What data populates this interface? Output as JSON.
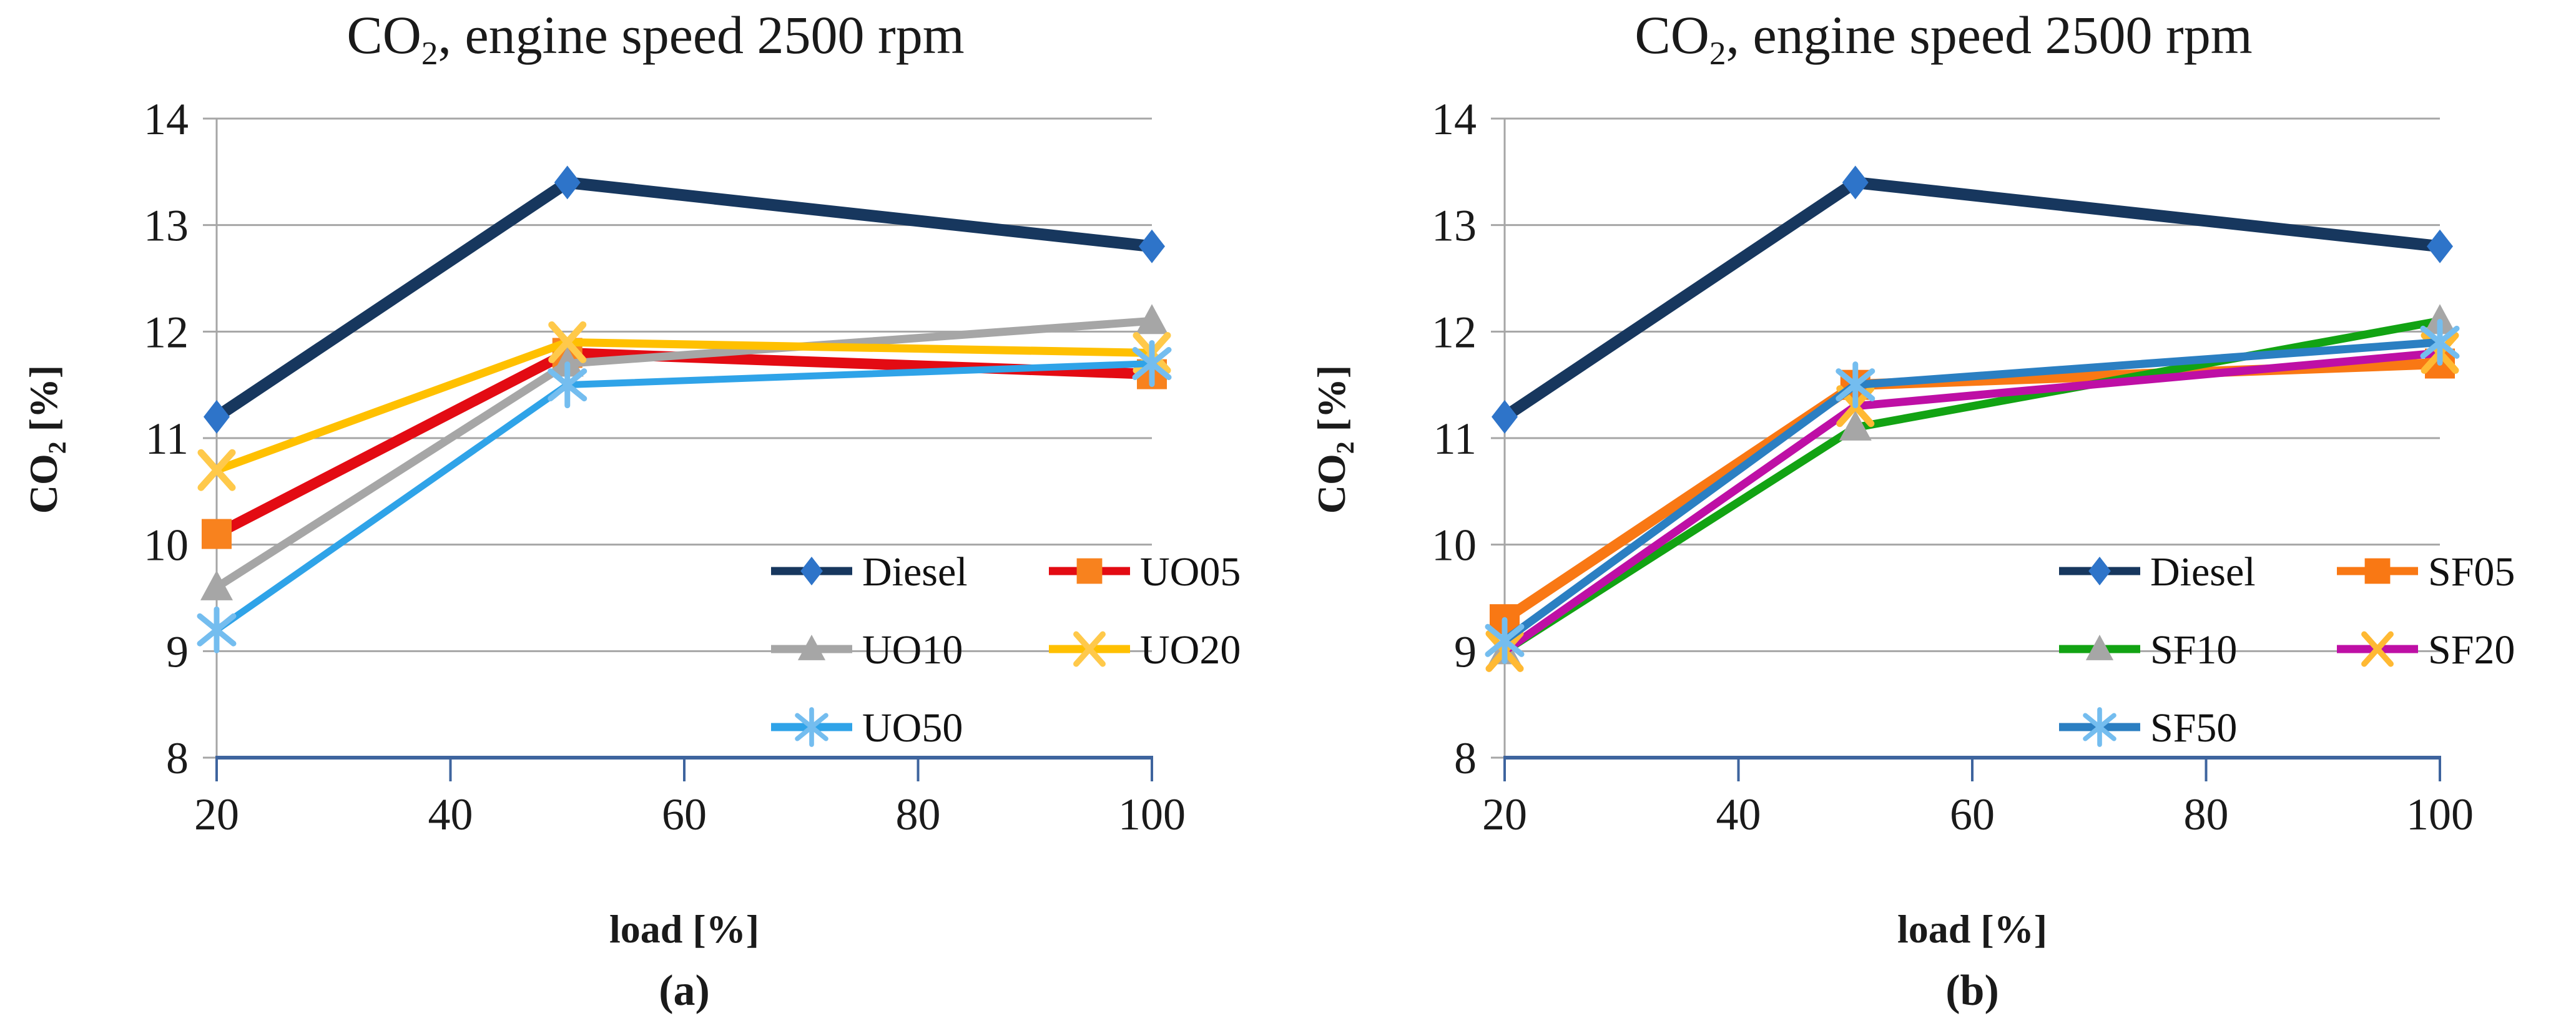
{
  "style": {
    "background": "#FFFFFF",
    "grid_color": "#A6A6A6",
    "y_axis_color": "#A6A6A6",
    "x_axis_color": "#3E649E",
    "text_color": "#1A1A1A"
  },
  "chart_data": [
    {
      "id": "a",
      "type": "line",
      "title_co": "CO",
      "title_sub": "2",
      "title_rest": ", engine speed 2500 rpm",
      "caption": "(a)",
      "xlabel": "load [%]",
      "ylabel_co": "CO",
      "ylabel_sub": "2",
      "ylabel_rest": " [%]",
      "xlim": [
        20,
        100
      ],
      "ylim": [
        8,
        14
      ],
      "x_ticks": [
        20,
        40,
        60,
        80,
        100
      ],
      "y_ticks": [
        8,
        9,
        10,
        11,
        12,
        13,
        14
      ],
      "grid": true,
      "legend_position": "inside-bottom-right",
      "legend_rows": [
        [
          "Diesel",
          "UO05"
        ],
        [
          "UO10",
          "UO20"
        ],
        [
          "UO50"
        ]
      ],
      "x": [
        20,
        50,
        100
      ],
      "series": [
        {
          "name": "Diesel",
          "values": [
            11.2,
            13.4,
            12.8
          ],
          "line_color": "#17375E",
          "line_width": 19,
          "marker": "diamond",
          "marker_color": "#2E74C9"
        },
        {
          "name": "UO05",
          "values": [
            10.1,
            11.8,
            11.6
          ],
          "line_color": "#E30B13",
          "line_width": 17,
          "marker": "square",
          "marker_color": "#F8821E"
        },
        {
          "name": "UO10",
          "values": [
            9.6,
            11.7,
            12.1
          ],
          "line_color": "#A6A6A6",
          "line_width": 13,
          "marker": "triangle",
          "marker_color": "#A6A6A6"
        },
        {
          "name": "UO20",
          "values": [
            10.7,
            11.9,
            11.8
          ],
          "line_color": "#FFC000",
          "line_width": 13,
          "marker": "x",
          "marker_color": "#FFC94A"
        },
        {
          "name": "UO50",
          "values": [
            9.2,
            11.5,
            11.7
          ],
          "line_color": "#2FA3E8",
          "line_width": 11,
          "marker": "asterisk",
          "marker_color": "#74BDEF"
        }
      ]
    },
    {
      "id": "b",
      "type": "line",
      "title_co": "CO",
      "title_sub": "2",
      "title_rest": ", engine speed 2500 rpm",
      "caption": "(b)",
      "xlabel": "load [%]",
      "ylabel_co": "CO",
      "ylabel_sub": "2",
      "ylabel_rest": " [%]",
      "xlim": [
        20,
        100
      ],
      "ylim": [
        8,
        14
      ],
      "x_ticks": [
        20,
        40,
        60,
        80,
        100
      ],
      "y_ticks": [
        8,
        9,
        10,
        11,
        12,
        13,
        14
      ],
      "grid": true,
      "legend_position": "inside-bottom-right",
      "legend_rows": [
        [
          "Diesel",
          "SF05"
        ],
        [
          "SF10",
          "SF20"
        ],
        [
          "SF50"
        ]
      ],
      "x": [
        20,
        50,
        100
      ],
      "series": [
        {
          "name": "Diesel",
          "values": [
            11.2,
            13.4,
            12.8
          ],
          "line_color": "#17375E",
          "line_width": 19,
          "marker": "diamond",
          "marker_color": "#2E74C9"
        },
        {
          "name": "SF05",
          "values": [
            9.3,
            11.5,
            11.7
          ],
          "line_color": "#F97814",
          "line_width": 17,
          "marker": "square",
          "marker_color": "#F97814"
        },
        {
          "name": "SF10",
          "values": [
            9.0,
            11.1,
            12.1
          ],
          "line_color": "#12A313",
          "line_width": 13,
          "marker": "triangle",
          "marker_color": "#A6A6A6"
        },
        {
          "name": "SF20",
          "values": [
            9.0,
            11.3,
            11.8
          ],
          "line_color": "#BE0FA5",
          "line_width": 13,
          "marker": "x",
          "marker_color": "#FFB933"
        },
        {
          "name": "SF50",
          "values": [
            9.1,
            11.5,
            11.9
          ],
          "line_color": "#2B7FC2",
          "line_width": 13,
          "marker": "asterisk",
          "marker_color": "#74BDEF"
        }
      ]
    }
  ]
}
